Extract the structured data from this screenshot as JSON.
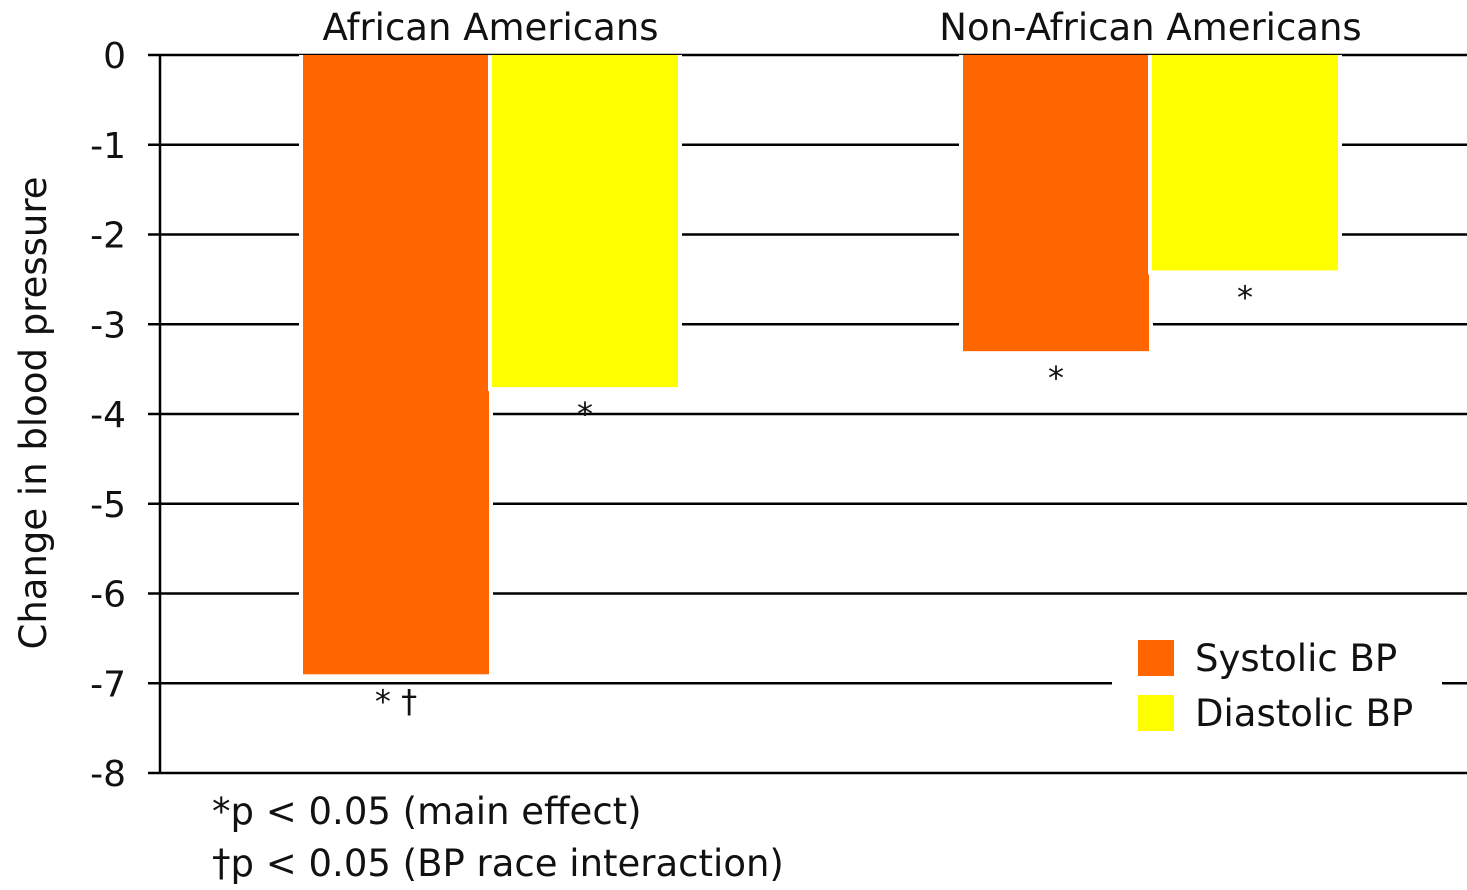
{
  "chart_data": {
    "type": "bar",
    "categories": [
      "African Americans",
      "Non-African Americans"
    ],
    "series": [
      {
        "name": "Systolic BP",
        "color": "#ff6600",
        "values": [
          -6.9,
          -3.3
        ],
        "annotations": [
          "* †",
          "*"
        ]
      },
      {
        "name": "Diastolic BP",
        "color": "#ffff00",
        "values": [
          -3.7,
          -2.4
        ],
        "annotations": [
          "*",
          "*"
        ]
      }
    ],
    "ylabel": "Change in blood pressure",
    "ylim": [
      -8,
      0
    ],
    "yticks": [
      "0",
      "-1",
      "-2",
      "-3",
      "-4",
      "-5",
      "-6",
      "-7",
      "-8"
    ],
    "grid": true,
    "legend_position": "bottom-right"
  },
  "footnotes": [
    "*p < 0.05 (main effect)",
    "†p < 0.05 (BP race interaction)"
  ]
}
